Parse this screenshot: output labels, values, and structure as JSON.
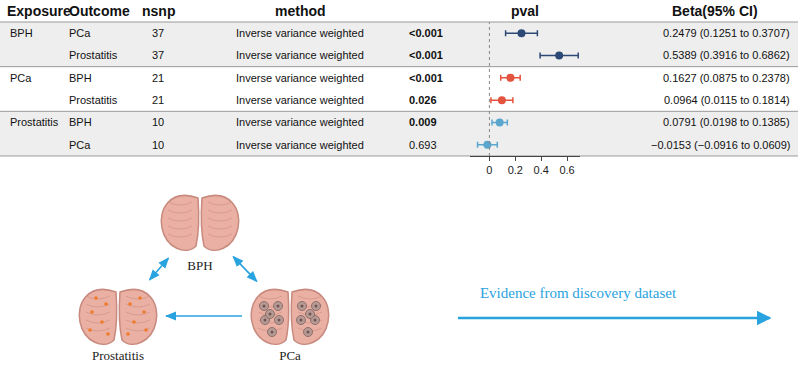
{
  "chart_data": {
    "type": "forest",
    "columns": [
      "Exposure",
      "Outcome",
      "nsnp",
      "method",
      "pval",
      "Beta(95% CI)"
    ],
    "groups": [
      {
        "exposure": "BPH",
        "color": "#2c4875",
        "rows": [
          {
            "outcome": "PCa",
            "nsnp": 37,
            "method": "Inverse variance weighted",
            "pval": "<0.001",
            "beta": 0.2479,
            "ci_low": 0.1251,
            "ci_high": 0.3707,
            "label": "0.2479 (0.1251 to 0.3707)"
          },
          {
            "outcome": "Prostatitis",
            "nsnp": 37,
            "method": "Inverse variance weighted",
            "pval": "<0.001",
            "beta": 0.5389,
            "ci_low": 0.3916,
            "ci_high": 0.6862,
            "label": "0.5389 (0.3916 to 0.6862)"
          }
        ]
      },
      {
        "exposure": "PCa",
        "color": "#e4533d",
        "rows": [
          {
            "outcome": "BPH",
            "nsnp": 21,
            "method": "Inverse variance weighted",
            "pval": "<0.001",
            "beta": 0.1627,
            "ci_low": 0.0875,
            "ci_high": 0.2378,
            "label": "0.1627 (0.0875 to 0.2378)"
          },
          {
            "outcome": "Prostatitis",
            "nsnp": 21,
            "method": "Inverse variance weighted",
            "pval": "0.026",
            "beta": 0.0964,
            "ci_low": 0.0115,
            "ci_high": 0.1814,
            "label": "0.0964 (0.0115 to 0.1814)"
          }
        ]
      },
      {
        "exposure": "Prostatitis",
        "color": "#5aa6cf",
        "rows": [
          {
            "outcome": "BPH",
            "nsnp": 10,
            "method": "Inverse variance weighted",
            "pval": "0.009",
            "beta": 0.0791,
            "ci_low": 0.0198,
            "ci_high": 0.1385,
            "label": "0.0791 (0.0198 to 0.1385)"
          },
          {
            "outcome": "PCa",
            "nsnp": 10,
            "method": "Inverse variance weighted",
            "pval": "0.693",
            "beta": -0.0153,
            "ci_low": -0.0916,
            "ci_high": 0.0609,
            "label": "−0.0153 (−0.0916 to 0.0609)"
          }
        ]
      }
    ],
    "xlim": [
      -0.15,
      0.7
    ],
    "xticks": [
      0,
      0.2,
      0.4,
      0.6
    ],
    "null_line": 0
  },
  "diagram": {
    "nodes": [
      {
        "label": "BPH",
        "style": "normal"
      },
      {
        "label": "Prostatitis",
        "style": "inflamed"
      },
      {
        "label": "PCa",
        "style": "tumor"
      }
    ],
    "edges": [
      {
        "from": "BPH",
        "to": "Prostatitis",
        "both": true
      },
      {
        "from": "BPH",
        "to": "PCa",
        "both": true
      },
      {
        "from": "PCa",
        "to": "Prostatitis",
        "both": false
      }
    ],
    "legend_text": "Evidence from discovery dataset"
  }
}
